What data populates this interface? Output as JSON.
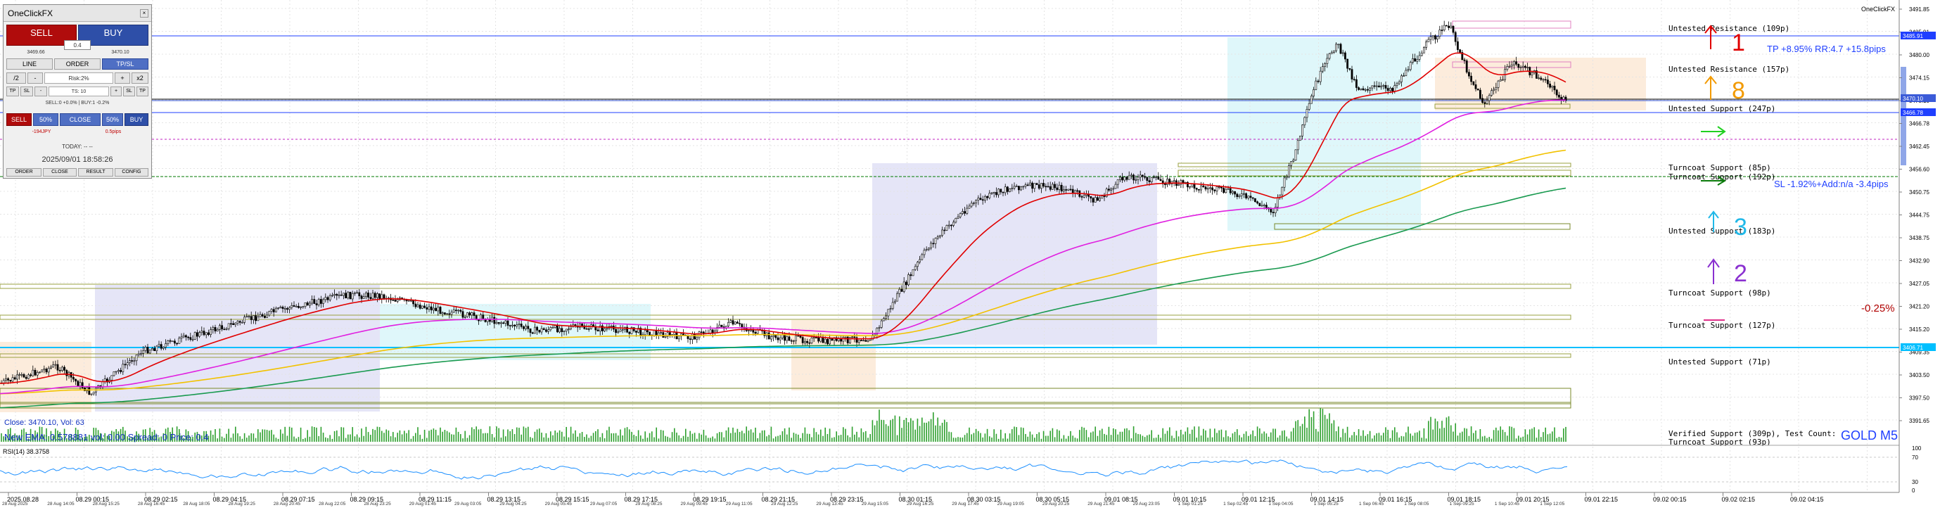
{
  "symbol_label": "GOLD M5",
  "top_symbol": "OneClickFX",
  "panel": {
    "title": "OneClickFX",
    "sell_label": "SELL",
    "buy_label": "BUY",
    "lot": "0.4",
    "bid": "3469.66",
    "ask": "3470.10",
    "tabs": [
      "LINE",
      "ORDER",
      "TP/SL"
    ],
    "row_half": "/2",
    "row_minus": "-",
    "risk": "Risk:2%",
    "row_plus": "+",
    "row_x2": "x2",
    "tp": "TP",
    "sl": "SL",
    "ts": "TS: 10",
    "pos_info": "SELL:0 +0.0% | BUY:1 -0.2%",
    "sell2": "SELL",
    "p50a": "50%",
    "close": "CLOSE",
    "p50b": "50%",
    "buy2": "BUY",
    "pnl_left": "-194JPY",
    "pnl_right": "0.5pips",
    "today": "TODAY: -- --",
    "datetime": "2025/09/01  18:58:26",
    "bottom_tabs": [
      "ORDER",
      "CLOSE",
      "RESULT",
      "CONFIG"
    ]
  },
  "zone_labels": [
    {
      "text": "Untested Resistance (109p)"
    },
    {
      "text": "Untested Resistance (157p)"
    },
    {
      "text": "Untested Support (247p)"
    },
    {
      "text": "Turncoat Support (85p)"
    },
    {
      "text": "Turncoat Support (192p)"
    },
    {
      "text": "Untested Support (183p)"
    },
    {
      "text": "Turncoat Support (98p)"
    },
    {
      "text": "Turncoat Support (127p)"
    },
    {
      "text": "Untested Support (71p)"
    },
    {
      "text": "Verified Support (309p), Test Count:"
    },
    {
      "text": "Turncoat Support (93p)"
    }
  ],
  "tp_text": "TP +8.95% RR:4.7 +15.8pips",
  "sl_text": "SL -1.92%+Add:n/a -3.4pips",
  "pct_text": "-0.25%",
  "arrows": {
    "n1": "1",
    "n8": "8",
    "n3": "3",
    "n2": "2"
  },
  "info_line1": "Close: 3470.10, Vol: 63",
  "info_line2": "New EMA: 0.578881 vol: 0.00 Spread: 0 Price: 0.4",
  "rsi_label": "RSI(14) 38.3758",
  "price_axis": [
    "3491.85",
    "3485.91",
    "3480.00",
    "3474.15",
    "3470.10",
    "3466.78",
    "3462.45",
    "3456.60",
    "3450.75",
    "3444.75",
    "3438.75",
    "3432.90",
    "3427.05",
    "3421.20",
    "3415.20",
    "3409.35",
    "3403.50",
    "3397.50",
    "3391.65"
  ],
  "price_tags": {
    "a": "3485.91",
    "b": "3470.10",
    "c": "3466.78",
    "d": "3406.71"
  },
  "rsi_axis": [
    "100",
    "70",
    "30",
    "0"
  ],
  "time_axis_top": [
    "2025.08.28",
    "08.29 00:15",
    "08.29 02:15",
    "08.29 04:15",
    "08.29 07:15",
    "08.29 09:15",
    "08.29 11:15",
    "08.29 13:15",
    "08.29 15:15",
    "08.29 17:15",
    "08.29 19:15",
    "08.29 21:15",
    "08.29 23:15",
    "08.30 01:15",
    "08.30 03:15",
    "08.30 05:15",
    "09.01 08:15",
    "09.01 10:15",
    "09.01 12:15",
    "09.01 14:15",
    "09.01 16:15",
    "09.01 18:15",
    "09.01 20:15",
    "09.01 22:15",
    "09.02 00:15",
    "09.02 02:15",
    "09.02 04:15"
  ],
  "time_axis_bottom": [
    "28 Aug 2025",
    "28 Aug 14:05",
    "28 Aug 15:25",
    "28 Aug 16:45",
    "28 Aug 18:05",
    "28 Aug 19:25",
    "28 Aug 20:45",
    "28 Aug 22:05",
    "28 Aug 23:25",
    "29 Aug 01:45",
    "29 Aug 03:05",
    "29 Aug 04:25",
    "29 Aug 05:45",
    "29 Aug 07:05",
    "29 Aug 08:25",
    "29 Aug 09:45",
    "29 Aug 11:05",
    "29 Aug 12:25",
    "29 Aug 13:45",
    "29 Aug 15:05",
    "29 Aug 16:25",
    "29 Aug 17:45",
    "29 Aug 19:05",
    "29 Aug 20:25",
    "29 Aug 21:45",
    "29 Aug 23:05",
    "1 Sep 01:25",
    "1 Sep 02:45",
    "1 Sep 04:05",
    "1 Sep 05:25",
    "1 Sep 06:45",
    "1 Sep 08:05",
    "1 Sep 09:25",
    "1 Sep 10:45",
    "1 Sep 12:05"
  ],
  "colors": {
    "ema_red": "#e00000",
    "ema_magenta": "#e020e0",
    "ema_yellow": "#f2c200",
    "ema_green": "#1a9a50",
    "resistance": "#e080c0",
    "support": "#7a8a2a",
    "accent_blue": "#1f3fff"
  }
}
